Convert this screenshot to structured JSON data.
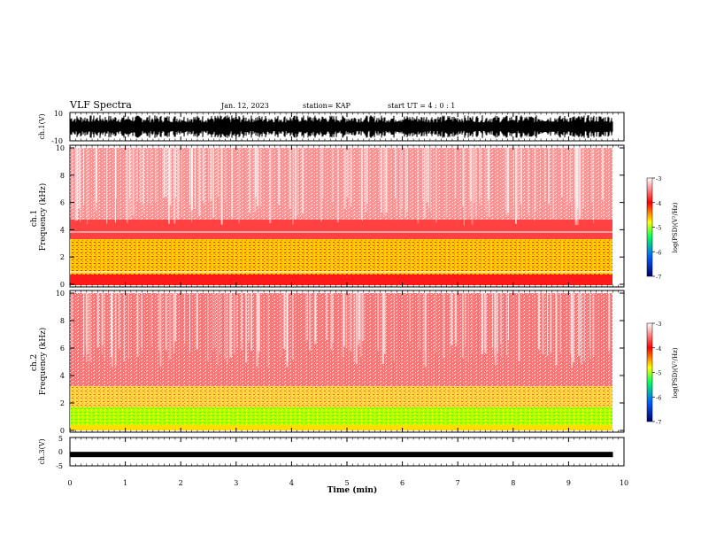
{
  "header": {
    "title": "VLF Spectra",
    "date": "Jan. 12, 2023",
    "station": "station= KAP",
    "start_ut": "start UT =  4 : 0  : 1"
  },
  "colors": {
    "low": "#00006e",
    "mid_low": "#00a0ff",
    "mid": "#00ff00",
    "mid_high": "#ffff00",
    "high": "#ff0000",
    "top": "#ffffff"
  },
  "chart_data": [
    {
      "type": "line",
      "panel": "ch1-waveform",
      "ylabel": "ch.1(V)",
      "ylim": [
        -10,
        10
      ],
      "yticks": [
        "10",
        "-10"
      ],
      "xlim": [
        0,
        10
      ],
      "description": "dense oscillating waveform spanning roughly -8 to 8 V over 0 to ~9.8 min"
    },
    {
      "type": "heatmap",
      "panel": "ch1-spectrogram",
      "ylabel": "ch.1 Frequency (kHz)",
      "ylim": [
        0,
        10
      ],
      "yticks": [
        "0",
        "2",
        "4",
        "6",
        "8",
        "10"
      ],
      "xlim": [
        0,
        10
      ],
      "bands": [
        {
          "freq_range": [
            0,
            0.8
          ],
          "level": "red"
        },
        {
          "freq_range": [
            0.8,
            3.3
          ],
          "level": "yellow-red"
        },
        {
          "freq_range": [
            3.3,
            4.8
          ],
          "level": "red"
        },
        {
          "freq_range": [
            4.8,
            10
          ],
          "level": "light-red"
        }
      ],
      "colorbar": {
        "label": "log(PSD)(V²/Hz)",
        "ticks": [
          "-3",
          "-4",
          "-5",
          "-6",
          "-7"
        ],
        "range": [
          -7,
          -3
        ]
      }
    },
    {
      "type": "heatmap",
      "panel": "ch2-spectrogram",
      "ylabel": "ch.2 Frequency (kHz)",
      "ylim": [
        0,
        10
      ],
      "yticks": [
        "0",
        "2",
        "4",
        "6",
        "8",
        "10"
      ],
      "xlim": [
        0,
        10
      ],
      "bands": [
        {
          "freq_range": [
            0,
            0.5
          ],
          "level": "yellow"
        },
        {
          "freq_range": [
            0.5,
            1.8
          ],
          "level": "green-yellow"
        },
        {
          "freq_range": [
            1.8,
            3.3
          ],
          "level": "yellow-red"
        },
        {
          "freq_range": [
            3.3,
            10
          ],
          "level": "red"
        }
      ],
      "colorbar": {
        "label": "log(PSD)(V²/Hz)",
        "ticks": [
          "-3",
          "-4",
          "-5",
          "-6",
          "-7"
        ],
        "range": [
          -7,
          -3
        ]
      }
    },
    {
      "type": "line",
      "panel": "ch3-waveform",
      "ylabel": "ch.3(V)",
      "ylim": [
        -5,
        5
      ],
      "yticks": [
        "5",
        "0",
        "-5"
      ],
      "xlim": [
        0,
        10
      ],
      "description": "thick near-constant trace at about -1 V from 0 to ~9.8 min"
    }
  ],
  "x_axis": {
    "label": "Time (min)",
    "ticks": [
      "0",
      "1",
      "2",
      "3",
      "4",
      "5",
      "6",
      "7",
      "8",
      "9",
      "10"
    ]
  }
}
